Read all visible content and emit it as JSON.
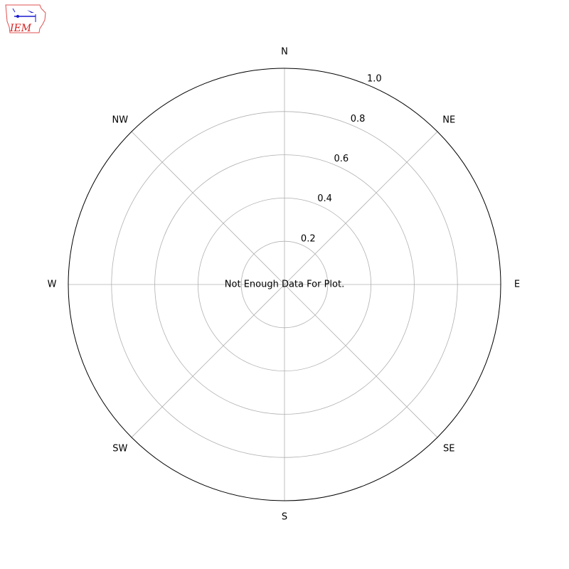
{
  "logo": {
    "text": "IEM",
    "outline_color": "#e05050",
    "text_color": "#d42020",
    "symbol_color": "#1a1ad0"
  },
  "chart_data": {
    "type": "polar",
    "theta_labels": [
      "N",
      "NE",
      "E",
      "SE",
      "S",
      "SW",
      "W",
      "NW"
    ],
    "r_ticks": [
      0.2,
      0.4,
      0.6,
      0.8,
      1.0
    ],
    "r_tick_labels": [
      "0.2",
      "0.4",
      "0.6",
      "0.8",
      "1.0"
    ],
    "rlim": [
      0,
      1.0
    ],
    "grid": true,
    "series": [],
    "annotation": "Not Enough Data For Plot."
  }
}
